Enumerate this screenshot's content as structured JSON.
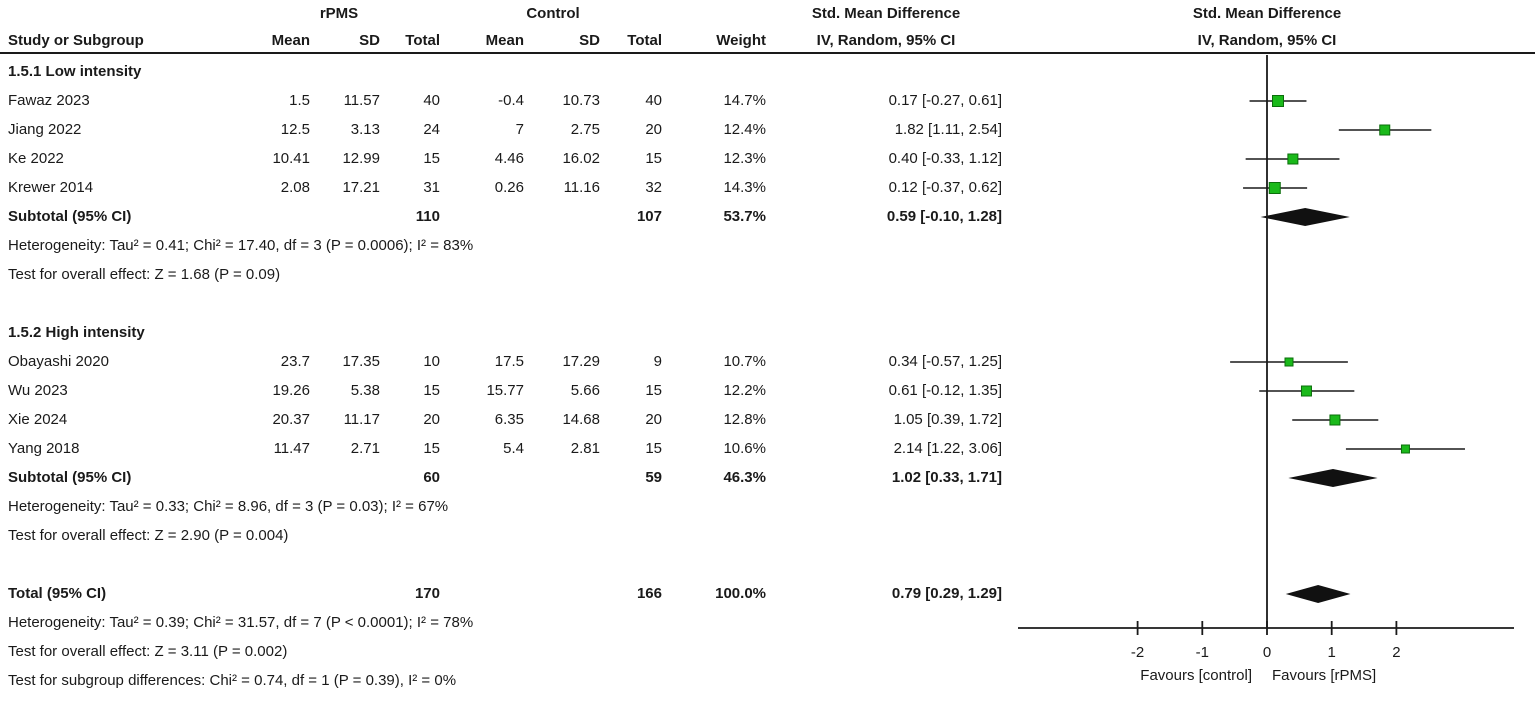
{
  "meta": {
    "background": "#ffffff",
    "text_color": "#1a1a1a",
    "line_color": "#1a1a1a",
    "square_fill": "#1ab91a",
    "square_border": "#0b6e0b",
    "diamond_color": "#111111"
  },
  "header": {
    "group1": "rPMS",
    "group2": "Control",
    "col_study": "Study or Subgroup",
    "col_mean1": "Mean",
    "col_sd1": "SD",
    "col_total1": "Total",
    "col_mean2": "Mean",
    "col_sd2": "SD",
    "col_total2": "Total",
    "col_weight": "Weight",
    "effect_title": "Std. Mean Difference",
    "effect_sub": "IV, Random, 95% CI",
    "plot_title": "Std. Mean Difference",
    "plot_sub": "IV, Random, 95% CI"
  },
  "chart_data": {
    "type": "forest",
    "effect_measure": "Std. Mean Difference",
    "method": "IV, Random, 95% CI",
    "x_axis": {
      "ticks": [
        -2,
        -1,
        0,
        1,
        2
      ],
      "left_label": "Favours [control]",
      "right_label": "Favours [rPMS]"
    },
    "groups": [
      {
        "label": "1.5.1 Low intensity",
        "studies": [
          {
            "study": "Fawaz 2023",
            "mean1": "1.5",
            "sd1": "11.57",
            "total1": "40",
            "mean2": "-0.4",
            "sd2": "10.73",
            "total2": "40",
            "weight": "14.7%",
            "weight_val": 14.7,
            "ci_label": "0.17 [-0.27, 0.61]",
            "est": 0.17,
            "lo": -0.27,
            "hi": 0.61
          },
          {
            "study": "Jiang 2022",
            "mean1": "12.5",
            "sd1": "3.13",
            "total1": "24",
            "mean2": "7",
            "sd2": "2.75",
            "total2": "20",
            "weight": "12.4%",
            "weight_val": 12.4,
            "ci_label": "1.82 [1.11, 2.54]",
            "est": 1.82,
            "lo": 1.11,
            "hi": 2.54
          },
          {
            "study": "Ke 2022",
            "mean1": "10.41",
            "sd1": "12.99",
            "total1": "15",
            "mean2": "4.46",
            "sd2": "16.02",
            "total2": "15",
            "weight": "12.3%",
            "weight_val": 12.3,
            "ci_label": "0.40 [-0.33, 1.12]",
            "est": 0.4,
            "lo": -0.33,
            "hi": 1.12
          },
          {
            "study": "Krewer 2014",
            "mean1": "2.08",
            "sd1": "17.21",
            "total1": "31",
            "mean2": "0.26",
            "sd2": "11.16",
            "total2": "32",
            "weight": "14.3%",
            "weight_val": 14.3,
            "ci_label": "0.12 [-0.37, 0.62]",
            "est": 0.12,
            "lo": -0.37,
            "hi": 0.62
          }
        ],
        "subtotal": {
          "label": "Subtotal (95% CI)",
          "total1": "110",
          "total2": "107",
          "weight": "53.7%",
          "ci_label": "0.59 [-0.10, 1.28]",
          "est": 0.59,
          "lo": -0.1,
          "hi": 1.28
        },
        "heterogeneity": "Heterogeneity: Tau² = 0.41; Chi² = 17.40, df = 3 (P = 0.0006); I² = 83%",
        "overall_effect": "Test for overall effect: Z = 1.68 (P = 0.09)"
      },
      {
        "label": "1.5.2 High intensity",
        "studies": [
          {
            "study": "Obayashi 2020",
            "mean1": "23.7",
            "sd1": "17.35",
            "total1": "10",
            "mean2": "17.5",
            "sd2": "17.29",
            "total2": "9",
            "weight": "10.7%",
            "weight_val": 10.7,
            "ci_label": "0.34 [-0.57, 1.25]",
            "est": 0.34,
            "lo": -0.57,
            "hi": 1.25
          },
          {
            "study": "Wu 2023",
            "mean1": "19.26",
            "sd1": "5.38",
            "total1": "15",
            "mean2": "15.77",
            "sd2": "5.66",
            "total2": "15",
            "weight": "12.2%",
            "weight_val": 12.2,
            "ci_label": "0.61 [-0.12, 1.35]",
            "est": 0.61,
            "lo": -0.12,
            "hi": 1.35
          },
          {
            "study": "Xie 2024",
            "mean1": "20.37",
            "sd1": "11.17",
            "total1": "20",
            "mean2": "6.35",
            "sd2": "14.68",
            "total2": "20",
            "weight": "12.8%",
            "weight_val": 12.8,
            "ci_label": "1.05 [0.39, 1.72]",
            "est": 1.05,
            "lo": 0.39,
            "hi": 1.72
          },
          {
            "study": "Yang 2018",
            "mean1": "11.47",
            "sd1": "2.71",
            "total1": "15",
            "mean2": "5.4",
            "sd2": "2.81",
            "total2": "15",
            "weight": "10.6%",
            "weight_val": 10.6,
            "ci_label": "2.14 [1.22, 3.06]",
            "est": 2.14,
            "lo": 1.22,
            "hi": 3.06
          }
        ],
        "subtotal": {
          "label": "Subtotal (95% CI)",
          "total1": "60",
          "total2": "59",
          "weight": "46.3%",
          "ci_label": "1.02 [0.33, 1.71]",
          "est": 1.02,
          "lo": 0.33,
          "hi": 1.71
        },
        "heterogeneity": "Heterogeneity: Tau² = 0.33; Chi² = 8.96, df = 3 (P = 0.03); I² = 67%",
        "overall_effect": "Test for overall effect: Z = 2.90 (P = 0.004)"
      }
    ],
    "total": {
      "label": "Total (95% CI)",
      "total1": "170",
      "total2": "166",
      "weight": "100.0%",
      "ci_label": "0.79 [0.29, 1.29]",
      "est": 0.79,
      "lo": 0.29,
      "hi": 1.29
    },
    "total_heterogeneity": "Heterogeneity: Tau² = 0.39; Chi² = 31.57, df = 7 (P < 0.0001); I² = 78%",
    "total_overall_effect": "Test for overall effect: Z = 3.11 (P = 0.002)",
    "subgroup_difference": "Test for subgroup differences: Chi² = 0.74, df = 1 (P = 0.39), I² = 0%"
  }
}
